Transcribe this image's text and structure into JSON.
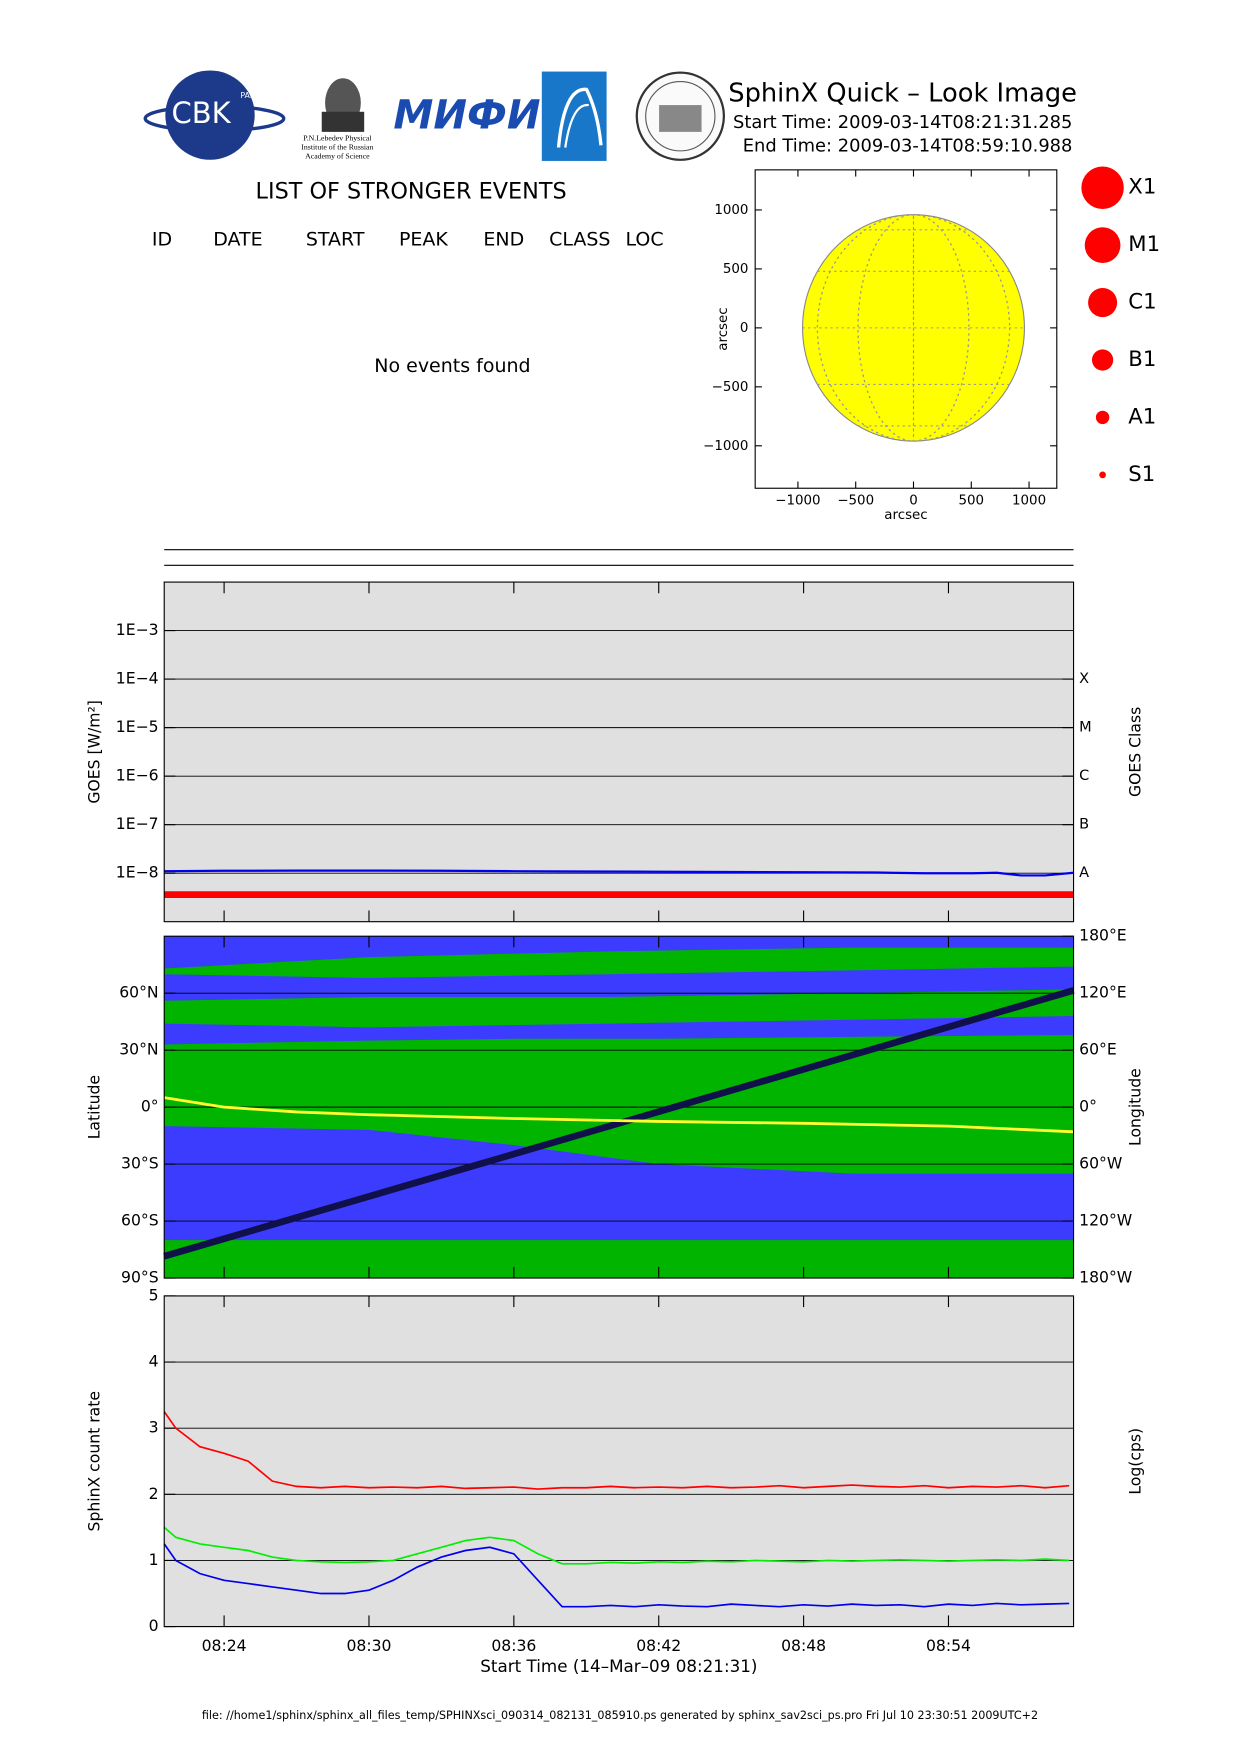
{
  "header": {
    "title": "SphinX Quick – Look Image",
    "start_time": "Start Time: 2009-03-14T08:21:31.285",
    "end_time": "End Time: 2009-03-14T08:59:10.988",
    "logos": [
      "CBK",
      "PAN",
      "МИФИ"
    ],
    "lebedev_caption": [
      "P.N.Lebedev Physical",
      "Institute of the Russian",
      "Academy of Science"
    ]
  },
  "events": {
    "title": "LIST OF STRONGER EVENTS",
    "columns": [
      "ID",
      "DATE",
      "START",
      "PEAK",
      "END",
      "CLASS",
      "LOC"
    ],
    "message": "No events found"
  },
  "flare_legend": {
    "labels": [
      "X1",
      "M1",
      "C1",
      "B1",
      "A1",
      "S1"
    ],
    "color": "#ff0000"
  },
  "footer": "file: //home1/sphinx/sphinx_all_files_temp/SPHINXsci_090314_082131_085910.ps generated by sphinx_sav2sci_ps.pro Fri Jul 10 23:30:51 2009UTC+2",
  "chart_data": [
    {
      "type": "disk",
      "x_label": "arcsec",
      "y_label": "arcsec",
      "xlim": [
        -1370,
        1240
      ],
      "ylim": [
        -1360,
        1340
      ],
      "xticks": [
        {
          "value": -1000,
          "label": "−1000"
        },
        {
          "value": -500,
          "label": "−500"
        },
        0,
        500,
        1000
      ],
      "yticks": [
        {
          "value": -1000,
          "label": "−1000"
        },
        {
          "value": -500,
          "label": "−500"
        },
        0,
        500,
        1000
      ],
      "sun_radius": 960,
      "color": "#ffff00"
    },
    {
      "type": "line",
      "y_label": "GOES [W/m²]",
      "y2_label": "GOES Class",
      "log_scale": true,
      "xlim": [
        21.52,
        59.18
      ],
      "ylim": [
        1e-09,
        0.01
      ],
      "yticks": [
        {
          "value": 0.001,
          "label": "1E−3"
        },
        {
          "value": 0.0001,
          "label": "1E−4"
        },
        {
          "value": 1e-05,
          "label": "1E−5"
        },
        {
          "value": 1e-06,
          "label": "1E−6"
        },
        {
          "value": 1e-07,
          "label": "1E−7"
        },
        {
          "value": 1e-08,
          "label": "1E−8"
        }
      ],
      "class_ticks": [
        {
          "value": 0.0001,
          "label": "X"
        },
        {
          "value": 1e-05,
          "label": "M"
        },
        {
          "value": 1e-06,
          "label": "C"
        },
        {
          "value": 1e-07,
          "label": "B"
        },
        {
          "value": 1e-08,
          "label": "A"
        }
      ],
      "grid": true,
      "background": "#e0e0e0",
      "x": [
        21.52,
        24,
        27,
        30,
        33,
        36,
        39,
        42,
        45,
        48,
        51,
        53,
        55,
        56,
        57,
        58,
        59.18
      ],
      "series": [
        {
          "color": "#0000ee",
          "width": 2,
          "values": [
            1.1e-08,
            1.12e-08,
            1.13e-08,
            1.13e-08,
            1.12e-08,
            1.1e-08,
            1.08e-08,
            1.07e-08,
            1.06e-08,
            1.05e-08,
            1.03e-08,
            1e-08,
            1e-08,
            1.02e-08,
            9e-09,
            9e-09,
            1.02e-08
          ]
        },
        {
          "color": "#ff0000",
          "width": 6,
          "values": [
            3.6e-09,
            3.6e-09,
            3.6e-09,
            3.6e-09,
            3.6e-09,
            3.6e-09,
            3.6e-09,
            3.6e-09,
            3.6e-09,
            3.6e-09,
            3.6e-09,
            3.6e-09,
            3.6e-09,
            3.6e-09,
            3.6e-09,
            3.6e-09,
            3.6e-09
          ]
        }
      ]
    },
    {
      "type": "orbit",
      "y_label": "Latitude",
      "y2_label": "Longitude",
      "xlim": [
        21.52,
        59.18
      ],
      "ylim": [
        -90,
        90
      ],
      "y2lim": [
        -180,
        180
      ],
      "yticks": [
        {
          "value": -90,
          "label": "90°S"
        },
        {
          "value": -60,
          "label": "60°S"
        },
        {
          "value": -30,
          "label": "30°S"
        },
        {
          "value": 0,
          "label": "0°"
        },
        {
          "value": 30,
          "label": "30°N"
        },
        {
          "value": 60,
          "label": "60°N"
        }
      ],
      "y2ticks": [
        {
          "value": -180,
          "label": "180°W"
        },
        {
          "value": -120,
          "label": "120°W"
        },
        {
          "value": -60,
          "label": "60°W"
        },
        {
          "value": 0,
          "label": "0°"
        },
        {
          "value": 60,
          "label": "60°E"
        },
        {
          "value": 120,
          "label": "120°E"
        },
        {
          "value": 180,
          "label": "180°E"
        }
      ],
      "grid": true,
      "background": "#3c3cff",
      "regions": [
        {
          "color": "#00b400",
          "x": [
            21.52,
            30,
            40,
            50,
            59.18
          ],
          "lower": [
            70,
            68,
            70,
            72,
            74
          ],
          "upper": [
            73,
            79,
            82,
            84,
            84
          ]
        },
        {
          "color": "#00b400",
          "x": [
            21.52,
            30,
            40,
            50,
            59.18
          ],
          "lower": [
            44,
            42,
            44,
            46,
            48
          ],
          "upper": [
            56,
            58,
            58,
            60,
            62
          ]
        },
        {
          "color": "#00b400",
          "x": [
            21.52,
            30,
            36,
            42,
            50,
            59.18
          ],
          "lower": [
            -10,
            -12,
            -20,
            -30,
            -35,
            -35
          ],
          "upper": [
            33,
            35,
            36,
            36,
            37,
            38
          ]
        },
        {
          "color": "#00b400",
          "x": [
            21.52,
            59.18
          ],
          "lower": [
            -90,
            -90
          ],
          "upper": [
            -70,
            -70
          ]
        }
      ],
      "series": [
        {
          "name": "Longitude",
          "axis": "y2",
          "color": "#10104a",
          "width": 6,
          "x": [
            21.52,
            59.18
          ],
          "values": [
            -157,
            123
          ]
        },
        {
          "name": "Latitude",
          "color": "#ffff30",
          "width": 2.5,
          "x": [
            21.52,
            24,
            27,
            30,
            36,
            42,
            48,
            54,
            59.18
          ],
          "values": [
            5,
            0,
            -2.5,
            -4,
            -6,
            -7.5,
            -8.5,
            -10,
            -13
          ]
        }
      ]
    },
    {
      "type": "line",
      "y_label": "SphinX count rate",
      "y2_label": "Log(cps)",
      "x_label": "Start Time (14–Mar–09 08:21:31)",
      "xlim": [
        21.52,
        59.18
      ],
      "ylim": [
        0,
        5
      ],
      "yticks": [
        0,
        1,
        2,
        3,
        4,
        5
      ],
      "xticks": [
        {
          "value": 24,
          "label": "08:24"
        },
        {
          "value": 30,
          "label": "08:30"
        },
        {
          "value": 36,
          "label": "08:36"
        },
        {
          "value": 42,
          "label": "08:42"
        },
        {
          "value": 48,
          "label": "08:48"
        },
        {
          "value": 54,
          "label": "08:54"
        }
      ],
      "grid": true,
      "background": "#e0e0e0",
      "x": [
        21.52,
        22,
        23,
        24,
        25,
        26,
        27,
        28,
        29,
        30,
        31,
        32,
        33,
        34,
        35,
        36,
        37,
        38,
        39,
        40,
        41,
        42,
        43,
        44,
        45,
        46,
        47,
        48,
        49,
        50,
        51,
        52,
        53,
        54,
        55,
        56,
        57,
        58,
        59
      ],
      "series": [
        {
          "color": "#ff0000",
          "values": [
            3.25,
            3.0,
            2.72,
            2.62,
            2.5,
            2.2,
            2.12,
            2.1,
            2.12,
            2.1,
            2.11,
            2.1,
            2.12,
            2.09,
            2.1,
            2.11,
            2.08,
            2.1,
            2.1,
            2.12,
            2.1,
            2.11,
            2.1,
            2.12,
            2.1,
            2.11,
            2.13,
            2.1,
            2.12,
            2.14,
            2.12,
            2.11,
            2.13,
            2.1,
            2.12,
            2.11,
            2.13,
            2.1,
            2.13
          ]
        },
        {
          "color": "#00ee00",
          "values": [
            1.5,
            1.35,
            1.25,
            1.2,
            1.15,
            1.05,
            1.0,
            0.98,
            0.97,
            0.98,
            1.0,
            1.1,
            1.2,
            1.3,
            1.35,
            1.3,
            1.1,
            0.95,
            0.95,
            0.97,
            0.96,
            0.98,
            0.97,
            0.99,
            0.98,
            1.0,
            0.99,
            0.98,
            1.0,
            0.99,
            1.0,
            1.01,
            1.0,
            0.99,
            1.0,
            1.01,
            1.0,
            1.02,
            1.0
          ]
        },
        {
          "color": "#0000ee",
          "values": [
            1.25,
            1.0,
            0.8,
            0.7,
            0.65,
            0.6,
            0.55,
            0.5,
            0.5,
            0.55,
            0.7,
            0.9,
            1.05,
            1.15,
            1.2,
            1.1,
            0.7,
            0.3,
            0.3,
            0.32,
            0.3,
            0.33,
            0.31,
            0.3,
            0.34,
            0.32,
            0.3,
            0.33,
            0.31,
            0.34,
            0.32,
            0.33,
            0.3,
            0.34,
            0.32,
            0.35,
            0.33,
            0.34,
            0.35
          ]
        }
      ]
    }
  ]
}
